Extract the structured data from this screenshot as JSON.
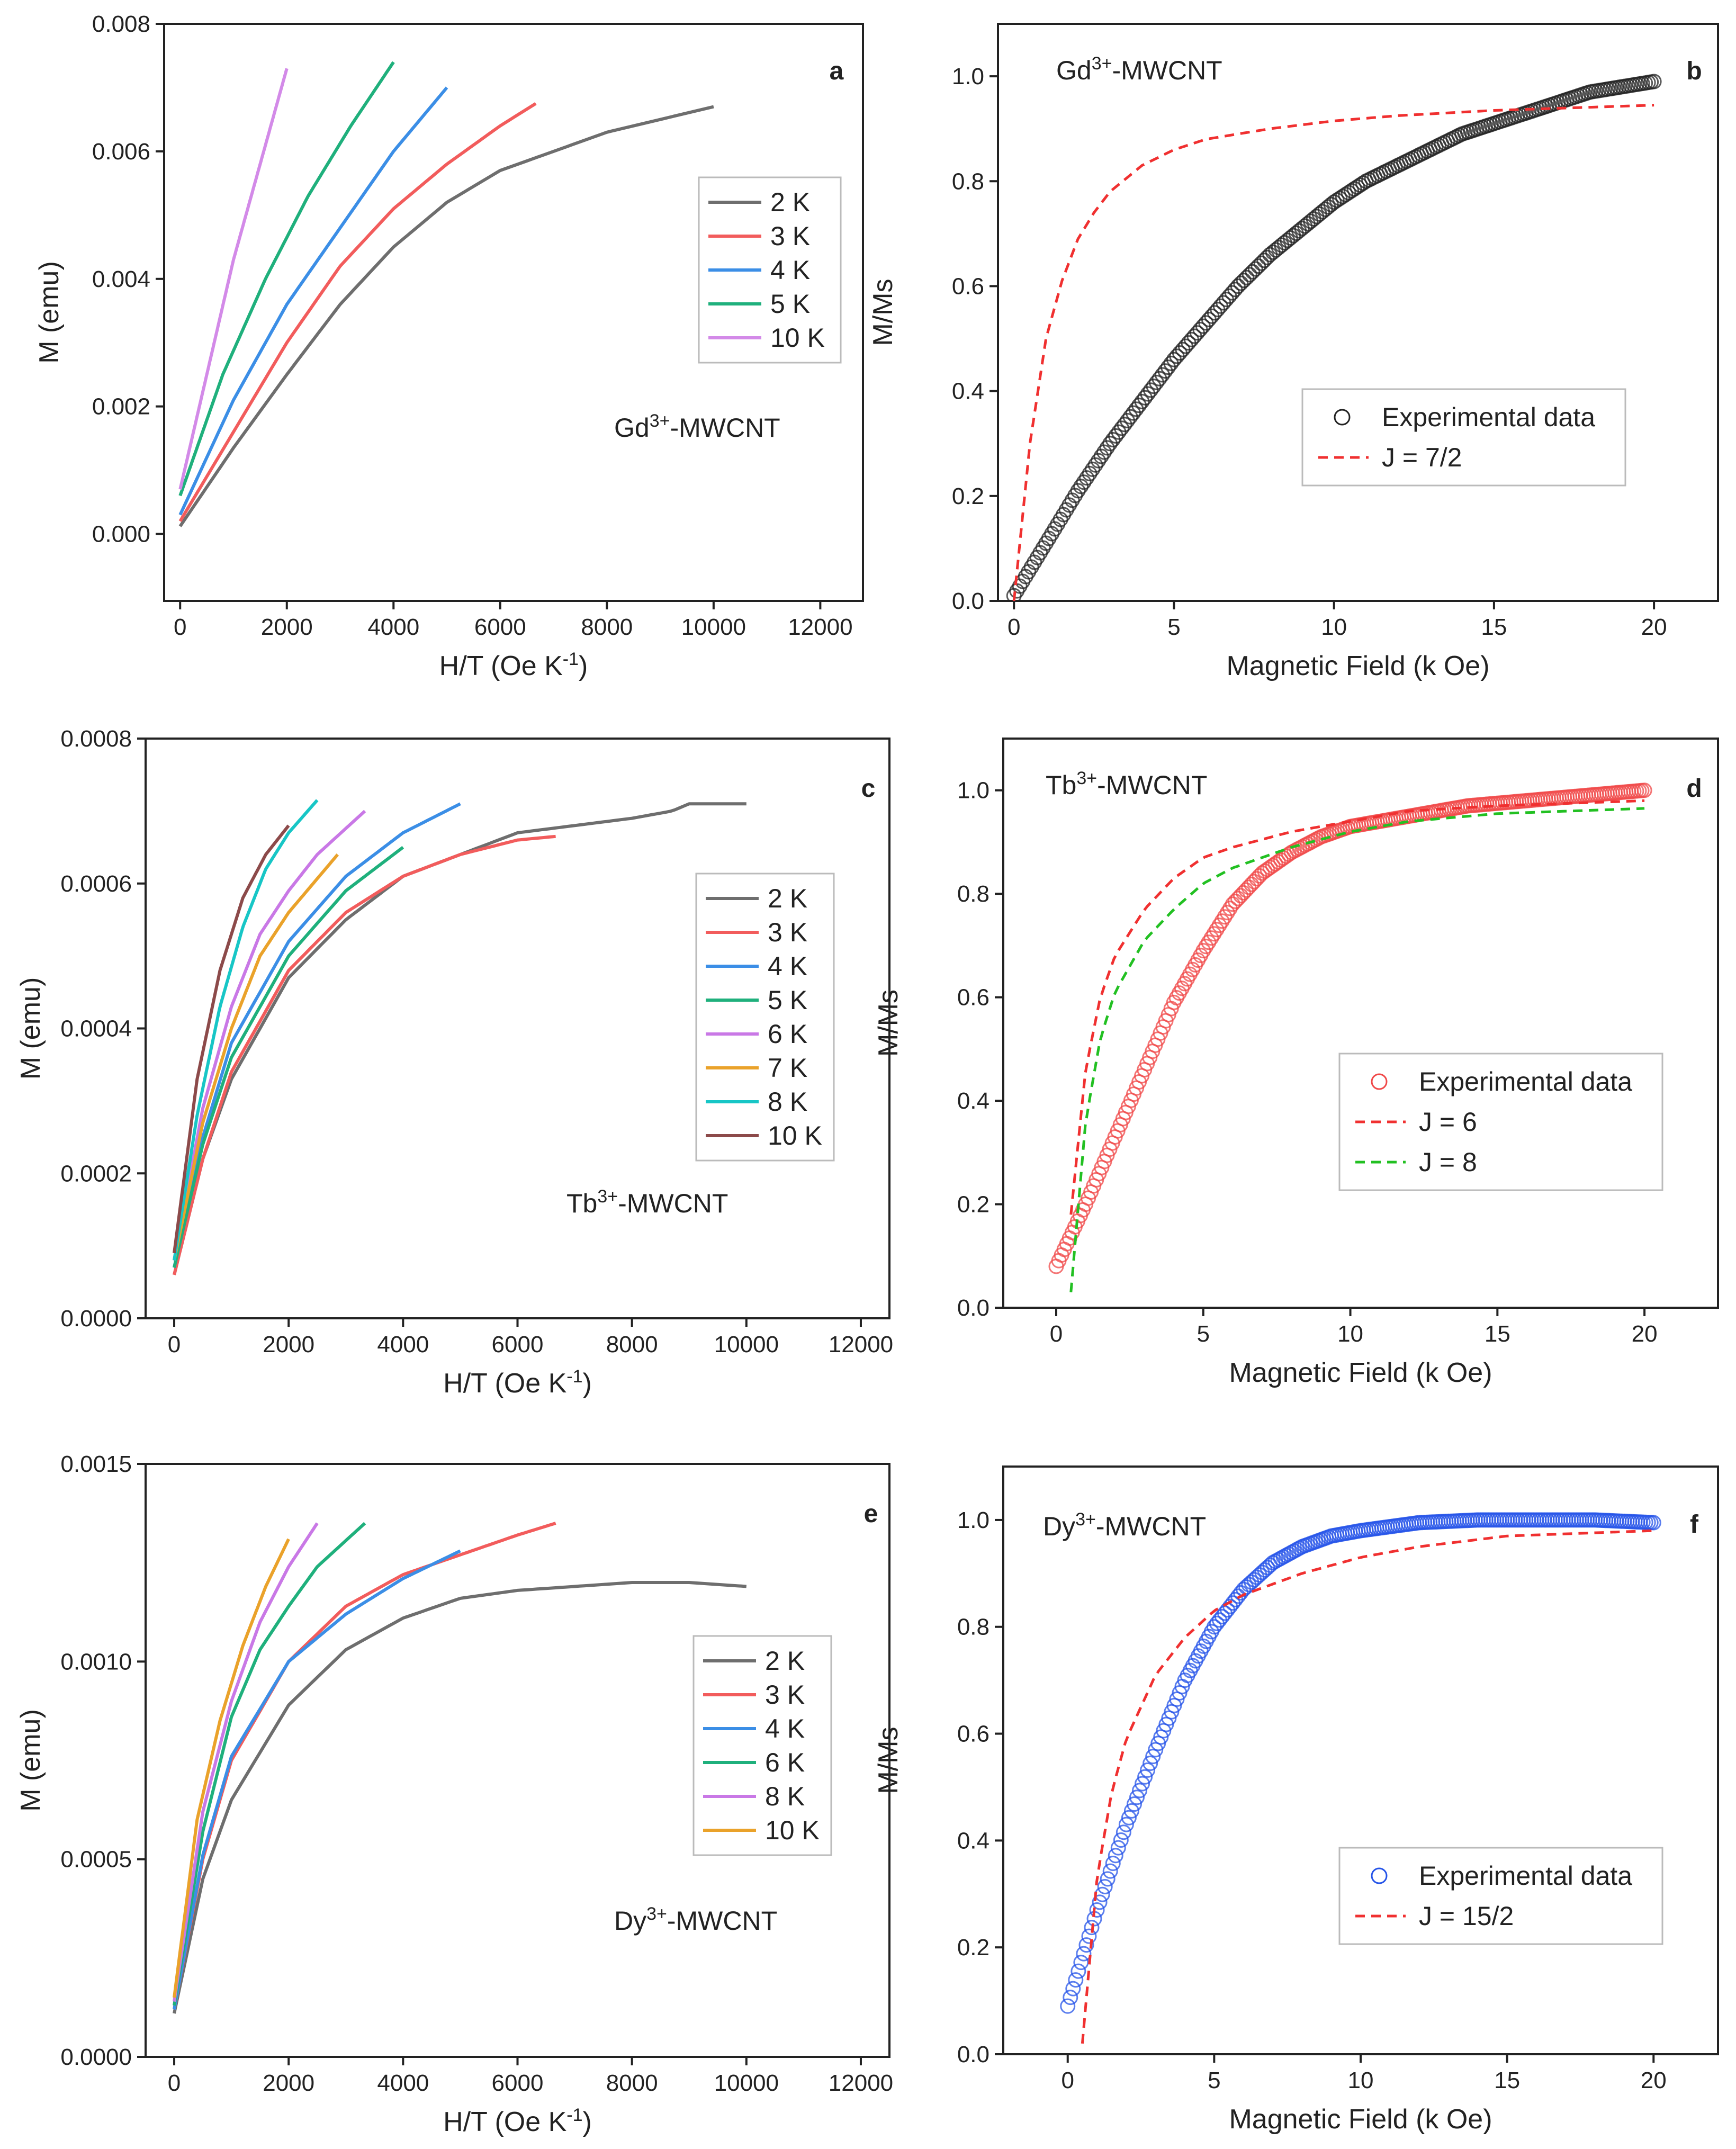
{
  "colors": {
    "2K": "#6e6e6e",
    "3K": "#f25c5c",
    "4K": "#3b8ee6",
    "5K": "#1fb07c",
    "6K": "#c978e6",
    "7K": "#eaa22a",
    "8K": "#17c6c6",
    "10K_violet": "#d38ae8",
    "10K_brown": "#8c4a4a",
    "10K_orange": "#eaa22a",
    "exp_gd": "#222222",
    "exp_tb": "#f04848",
    "exp_dy": "#2453e8",
    "fit_red": "#f03030",
    "fit_green": "#22c022"
  },
  "chart_data": [
    {
      "panel": "a",
      "type": "line",
      "sample_label": "Gd³⁺-MWCNT",
      "xlabel": "H/T (Oe K⁻¹)",
      "ylabel": "M (emu)",
      "xlim": [
        -300,
        12800
      ],
      "ylim": [
        -0.00105,
        0.008
      ],
      "xticks": [
        "0",
        "2000",
        "4000",
        "6000",
        "8000",
        "10000",
        "12000"
      ],
      "yticks": [
        "0.000",
        "0.002",
        "0.004",
        "0.006",
        "0.008"
      ],
      "series": [
        {
          "name": "2 K",
          "color_key": "2K",
          "x": [
            0,
            1000,
            2000,
            3000,
            4000,
            5000,
            6000,
            7000,
            8000,
            9000,
            10000
          ],
          "y": [
            0.00012,
            0.00135,
            0.0025,
            0.0036,
            0.0045,
            0.0052,
            0.0057,
            0.006,
            0.0063,
            0.0065,
            0.0067
          ]
        },
        {
          "name": "3 K",
          "color_key": "3K",
          "x": [
            0,
            1000,
            2000,
            3000,
            4000,
            5000,
            6000,
            6667
          ],
          "y": [
            0.0002,
            0.0016,
            0.003,
            0.0042,
            0.0051,
            0.0058,
            0.0064,
            0.00675
          ]
        },
        {
          "name": "4 K",
          "color_key": "4K",
          "x": [
            0,
            1000,
            2000,
            3000,
            4000,
            5000
          ],
          "y": [
            0.0003,
            0.0021,
            0.0036,
            0.0048,
            0.006,
            0.007
          ]
        },
        {
          "name": "5 K",
          "color_key": "5K",
          "x": [
            0,
            800,
            1600,
            2400,
            3200,
            4000
          ],
          "y": [
            0.0006,
            0.0025,
            0.004,
            0.0053,
            0.0064,
            0.0074
          ]
        },
        {
          "name": "10 K",
          "color_key": "10K_violet",
          "x": [
            0,
            500,
            1000,
            1500,
            2000
          ],
          "y": [
            0.0007,
            0.0025,
            0.0043,
            0.0058,
            0.0073
          ]
        }
      ]
    },
    {
      "panel": "b",
      "type": "scatter",
      "sample_label": "Gd³⁺-MWCNT",
      "xlabel": "Magnetic Field (k Oe)",
      "ylabel": "M/Ms",
      "xlim": [
        -0.5,
        22
      ],
      "ylim": [
        0,
        1.1
      ],
      "xticks": [
        "0",
        "5",
        "10",
        "15",
        "20"
      ],
      "yticks": [
        "0.0",
        "0.2",
        "0.4",
        "0.6",
        "0.8",
        "1.0"
      ],
      "series": [
        {
          "name": "Experimental data",
          "style": "markers",
          "color_key": "exp_gd",
          "x": [
            0,
            1,
            2,
            3,
            4,
            5,
            6,
            7,
            8,
            9,
            10,
            11,
            12,
            13,
            14,
            15,
            16,
            17,
            18,
            19,
            20
          ],
          "y": [
            0.01,
            0.11,
            0.21,
            0.3,
            0.38,
            0.46,
            0.53,
            0.6,
            0.66,
            0.71,
            0.76,
            0.8,
            0.83,
            0.86,
            0.89,
            0.91,
            0.93,
            0.95,
            0.97,
            0.98,
            0.99
          ]
        },
        {
          "name": "J = 7/2",
          "style": "dashed",
          "color_key": "fit_red",
          "x": [
            0,
            0.5,
            1,
            1.5,
            2,
            2.5,
            3,
            4,
            5,
            6,
            8,
            10,
            12,
            15,
            20
          ],
          "y": [
            0.0,
            0.3,
            0.5,
            0.61,
            0.69,
            0.74,
            0.78,
            0.83,
            0.86,
            0.88,
            0.9,
            0.915,
            0.925,
            0.935,
            0.945
          ]
        }
      ]
    },
    {
      "panel": "c",
      "type": "line",
      "sample_label": "Tb³⁺-MWCNT",
      "xlabel": "H/T (Oe K⁻¹)",
      "ylabel": "M (emu)",
      "xlim": [
        -500,
        12500
      ],
      "ylim": [
        0,
        0.0008
      ],
      "xticks": [
        "0",
        "2000",
        "4000",
        "6000",
        "8000",
        "10000",
        "12000"
      ],
      "yticks": [
        "0.0000",
        "0.0002",
        "0.0004",
        "0.0006",
        "0.0008"
      ],
      "series": [
        {
          "name": "2 K",
          "color_key": "2K",
          "x": [
            0,
            500,
            1000,
            2000,
            3000,
            4000,
            5000,
            6000,
            7000,
            8000,
            8700,
            9000,
            10000
          ],
          "y": [
            6e-05,
            0.00022,
            0.00033,
            0.00047,
            0.00055,
            0.00061,
            0.00064,
            0.00067,
            0.00068,
            0.00069,
            0.0007,
            0.00071,
            0.00071
          ]
        },
        {
          "name": "3 K",
          "color_key": "3K",
          "x": [
            0,
            500,
            1000,
            2000,
            3000,
            4000,
            5000,
            6000,
            6667
          ],
          "y": [
            6e-05,
            0.00022,
            0.00034,
            0.00048,
            0.00056,
            0.00061,
            0.00064,
            0.00066,
            0.000665
          ]
        },
        {
          "name": "4 K",
          "color_key": "4K",
          "x": [
            0,
            500,
            1000,
            2000,
            3000,
            4000,
            5000
          ],
          "y": [
            7e-05,
            0.00025,
            0.00038,
            0.00052,
            0.00061,
            0.00067,
            0.00071
          ]
        },
        {
          "name": "5 K",
          "color_key": "5K",
          "x": [
            0,
            500,
            1000,
            2000,
            3000,
            4000
          ],
          "y": [
            7e-05,
            0.00024,
            0.00036,
            0.0005,
            0.00059,
            0.00065
          ]
        },
        {
          "name": "6 K",
          "color_key": "6K",
          "x": [
            0,
            500,
            1000,
            1500,
            2000,
            2500,
            3333
          ],
          "y": [
            8e-05,
            0.00029,
            0.00043,
            0.00053,
            0.00059,
            0.00064,
            0.0007
          ]
        },
        {
          "name": "7 K",
          "color_key": "7K",
          "x": [
            0,
            500,
            1000,
            1500,
            2000,
            2857
          ],
          "y": [
            8e-05,
            0.00027,
            0.0004,
            0.0005,
            0.00056,
            0.00064
          ]
        },
        {
          "name": "8 K",
          "color_key": "8K",
          "x": [
            0,
            400,
            800,
            1200,
            1600,
            2000,
            2500
          ],
          "y": [
            8e-05,
            0.00028,
            0.00043,
            0.00054,
            0.00062,
            0.00067,
            0.000715
          ]
        },
        {
          "name": "10 K",
          "color_key": "10K_brown",
          "x": [
            0,
            400,
            800,
            1200,
            1600,
            2000
          ],
          "y": [
            9e-05,
            0.00033,
            0.00048,
            0.00058,
            0.00064,
            0.00068
          ]
        }
      ]
    },
    {
      "panel": "d",
      "type": "scatter",
      "sample_label": "Tb³⁺-MWCNT",
      "xlabel": "Magnetic Field (k Oe)",
      "ylabel": "M/Ms",
      "xlim": [
        -1.8,
        22.5
      ],
      "ylim": [
        0,
        1.1
      ],
      "xticks": [
        "0",
        "5",
        "10",
        "15",
        "20"
      ],
      "yticks": [
        "0.0",
        "0.2",
        "0.4",
        "0.6",
        "0.8",
        "1.0"
      ],
      "series": [
        {
          "name": "Experimental data",
          "style": "markers",
          "color_key": "exp_tb",
          "x": [
            0,
            0.5,
            1,
            2,
            3,
            4,
            5,
            6,
            7,
            8,
            9,
            10,
            12,
            14,
            16,
            18,
            20
          ],
          "y": [
            0.08,
            0.14,
            0.2,
            0.33,
            0.46,
            0.59,
            0.69,
            0.78,
            0.84,
            0.88,
            0.91,
            0.93,
            0.95,
            0.97,
            0.98,
            0.99,
            1.0
          ]
        },
        {
          "name": "J = 6",
          "style": "dashed",
          "color_key": "fit_red",
          "x": [
            0.5,
            1,
            1.5,
            2,
            3,
            4,
            5,
            6,
            8,
            10,
            12,
            15,
            20
          ],
          "y": [
            0.18,
            0.46,
            0.6,
            0.68,
            0.77,
            0.83,
            0.87,
            0.89,
            0.92,
            0.94,
            0.96,
            0.97,
            0.98
          ]
        },
        {
          "name": "J = 8",
          "style": "dashed",
          "color_key": "fit_green",
          "x": [
            0.5,
            1,
            1.5,
            2,
            3,
            4,
            5,
            6,
            8,
            10,
            12,
            15,
            20
          ],
          "y": [
            0.03,
            0.36,
            0.52,
            0.61,
            0.71,
            0.77,
            0.82,
            0.85,
            0.89,
            0.92,
            0.94,
            0.955,
            0.965
          ]
        }
      ]
    },
    {
      "panel": "e",
      "type": "line",
      "sample_label": "Dy³⁺-MWCNT",
      "xlabel": "H/T (Oe K⁻¹)",
      "ylabel": "M (emu)",
      "xlim": [
        -500,
        12500
      ],
      "ylim": [
        0,
        0.0015
      ],
      "xticks": [
        "0",
        "2000",
        "4000",
        "6000",
        "8000",
        "10000",
        "12000"
      ],
      "yticks": [
        "0.0000",
        "0.0005",
        "0.0010",
        "0.0015"
      ],
      "series": [
        {
          "name": "2 K",
          "color_key": "2K",
          "x": [
            0,
            500,
            1000,
            2000,
            3000,
            4000,
            5000,
            6000,
            7000,
            8000,
            9000,
            10000
          ],
          "y": [
            0.00011,
            0.00045,
            0.00065,
            0.00089,
            0.00103,
            0.00111,
            0.00116,
            0.00118,
            0.00119,
            0.0012,
            0.0012,
            0.00119
          ]
        },
        {
          "name": "3 K",
          "color_key": "3K",
          "x": [
            0,
            500,
            1000,
            2000,
            3000,
            4000,
            5000,
            6000,
            6667
          ],
          "y": [
            0.00012,
            0.0005,
            0.00075,
            0.001,
            0.00114,
            0.00122,
            0.00127,
            0.00132,
            0.00135
          ]
        },
        {
          "name": "4 K",
          "color_key": "4K",
          "x": [
            0,
            500,
            1000,
            2000,
            3000,
            4000,
            5000
          ],
          "y": [
            0.00012,
            0.00051,
            0.00076,
            0.001,
            0.00112,
            0.00121,
            0.00128
          ]
        },
        {
          "name": "6 K",
          "color_key": "5K",
          "x": [
            0,
            500,
            1000,
            1500,
            2000,
            2500,
            3333
          ],
          "y": [
            0.00013,
            0.00057,
            0.00086,
            0.00103,
            0.00114,
            0.00124,
            0.00135
          ]
        },
        {
          "name": "8 K",
          "color_key": "6K",
          "x": [
            0,
            500,
            1000,
            1500,
            2000,
            2500
          ],
          "y": [
            0.00014,
            0.00062,
            0.0009,
            0.0011,
            0.00124,
            0.00135
          ]
        },
        {
          "name": "10 K",
          "color_key": "10K_orange",
          "x": [
            0,
            400,
            800,
            1200,
            1600,
            2000
          ],
          "y": [
            0.00015,
            0.0006,
            0.00085,
            0.00104,
            0.00119,
            0.00131
          ]
        }
      ]
    },
    {
      "panel": "f",
      "type": "scatter",
      "sample_label": "Dy³⁺-MWCNT",
      "xlabel": "Magnetic Field (k Oe)",
      "ylabel": "M/Ms",
      "xlim": [
        -2.2,
        22.2
      ],
      "ylim": [
        0,
        1.1
      ],
      "xticks": [
        "0",
        "5",
        "10",
        "15",
        "20"
      ],
      "yticks": [
        "0.0",
        "0.2",
        "0.4",
        "0.6",
        "0.8",
        "1.0"
      ],
      "series": [
        {
          "name": "Experimental data",
          "style": "markers",
          "color_key": "exp_dy",
          "x": [
            0,
            0.5,
            1,
            2,
            3,
            4,
            5,
            6,
            7,
            8,
            9,
            10,
            12,
            14,
            16,
            18,
            20
          ],
          "y": [
            0.09,
            0.18,
            0.27,
            0.43,
            0.57,
            0.7,
            0.8,
            0.87,
            0.92,
            0.95,
            0.97,
            0.98,
            0.995,
            1.0,
            1.0,
            1.0,
            0.995
          ]
        },
        {
          "name": "J = 15/2",
          "style": "dashed",
          "color_key": "fit_red",
          "x": [
            0.5,
            1,
            1.5,
            2,
            3,
            4,
            5,
            6,
            8,
            10,
            12,
            15,
            20
          ],
          "y": [
            0.02,
            0.33,
            0.49,
            0.59,
            0.71,
            0.78,
            0.83,
            0.86,
            0.9,
            0.93,
            0.95,
            0.97,
            0.98
          ]
        }
      ]
    }
  ]
}
